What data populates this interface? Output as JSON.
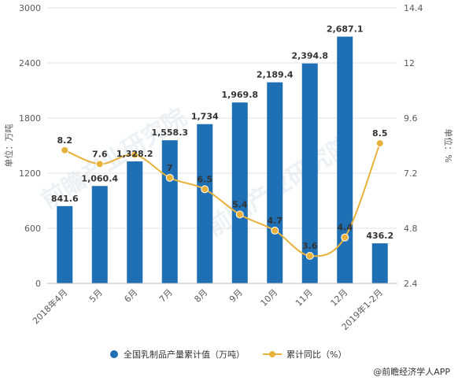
{
  "chart_data": {
    "type": "bar+line",
    "categories": [
      "2018年4月",
      "5月",
      "6月",
      "7月",
      "8月",
      "9月",
      "10月",
      "11月",
      "12月",
      "2019年1-2月"
    ],
    "series": [
      {
        "name": "全国乳制品产量累计值（万吨）",
        "type": "bar",
        "axis": "left",
        "values": [
          841.6,
          1060.4,
          1328.2,
          1558.3,
          1734,
          1969.8,
          2189.4,
          2394.8,
          2687.1,
          436.2
        ],
        "labels": [
          "841.6",
          "1,060.4",
          "1,328.2",
          "1,558.3",
          "1,734",
          "1,969.8",
          "2,189.4",
          "2,394.8",
          "2,687.1",
          "436.2"
        ],
        "color": "#1f6fb5"
      },
      {
        "name": "累计同比（%）",
        "type": "line",
        "axis": "right",
        "values": [
          8.2,
          7.6,
          8.0,
          7,
          6.5,
          5.4,
          4.7,
          3.6,
          4.4,
          8.5
        ],
        "labels": [
          "8.2",
          "7.6",
          "",
          "7",
          "6.5",
          "5.4",
          "4.7",
          "3.6",
          "4.4",
          "8.5"
        ],
        "color": "#e8b23a"
      }
    ],
    "y_left": {
      "label": "单位：万吨",
      "min": 0,
      "max": 3000,
      "ticks": [
        "0",
        "600",
        "1200",
        "1800",
        "2400",
        "3000"
      ]
    },
    "y_right": {
      "label": "单位：%",
      "min": 2.4,
      "max": 14.4,
      "ticks": [
        "2.4",
        "4.8",
        "7.2",
        "9.6",
        "12",
        "14.4"
      ]
    },
    "grid": true,
    "legend_position": "bottom"
  },
  "legend": {
    "bar_label": "全国乳制品产量累计值（万吨）",
    "line_label": "累计同比（%）"
  },
  "source": "@前瞻经济学人APP",
  "watermark": "前瞻产业研究院"
}
